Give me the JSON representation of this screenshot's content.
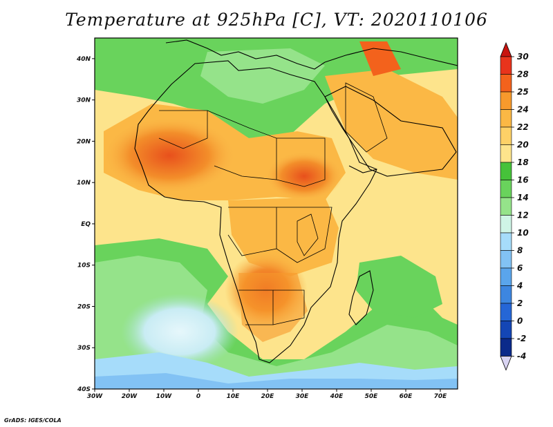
{
  "title": "Temperature at 925hPa [C], VT: 2020110106",
  "credit": "GrADS: IGES/COLA",
  "map": {
    "lon_range": [
      -30,
      75
    ],
    "lat_range": [
      -40,
      45
    ],
    "lon_ticks": [
      "30W",
      "20W",
      "10W",
      "0",
      "10E",
      "20E",
      "30E",
      "40E",
      "50E",
      "60E",
      "70E"
    ],
    "lat_ticks": [
      "40N",
      "30N",
      "20N",
      "10N",
      "EQ",
      "10S",
      "20S",
      "30S",
      "40S"
    ],
    "variable": "Temperature at 925hPa",
    "units": "C"
  },
  "colorbar": {
    "labels": [
      "30",
      "28",
      "25",
      "24",
      "22",
      "20",
      "18",
      "16",
      "14",
      "12",
      "10",
      "8",
      "6",
      "4",
      "2",
      "0",
      "-2",
      "-4"
    ],
    "colors": [
      "#e8341c",
      "#f3621c",
      "#f79a2c",
      "#fbb845",
      "#fdd167",
      "#fde48c",
      "#46c23a",
      "#69d35c",
      "#95e38a",
      "#cff5e6",
      "#a6dcfa",
      "#82c2f4",
      "#5aa5ec",
      "#3d86e0",
      "#2566d6",
      "#1446b5",
      "#0b2a8a"
    ],
    "top_color": "#c8140f",
    "bottom_color": "#d9d4f2"
  }
}
